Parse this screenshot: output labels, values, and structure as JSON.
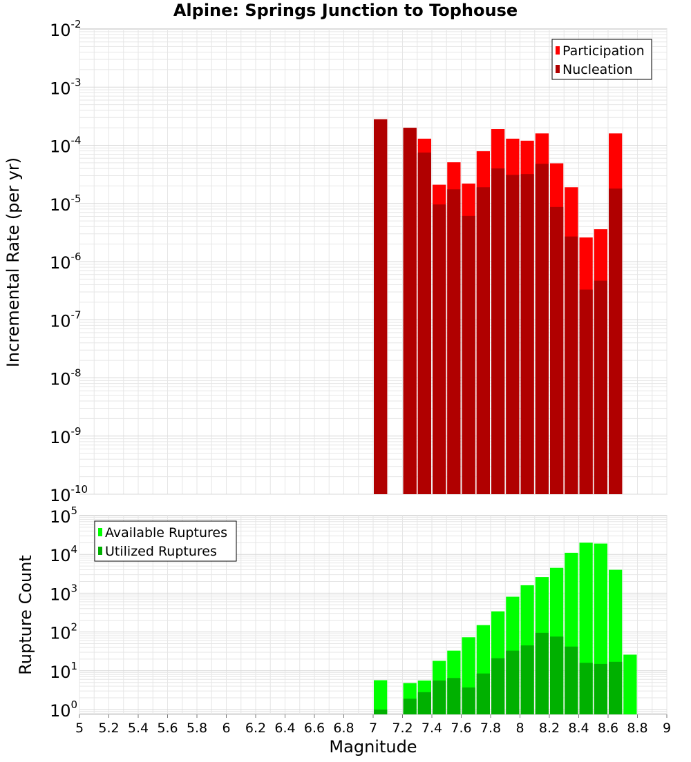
{
  "colors": {
    "participation": "#ff0000",
    "nucleation": "#b00000",
    "available": "#00ff00",
    "utilized": "#00b000",
    "grid": "#e6e6e6",
    "frame": "#bbbbbb"
  },
  "chart_data": [
    {
      "type": "bar",
      "title": "Alpine: Springs Junction to Tophouse",
      "xlabel": "Magnitude",
      "ylabel": "Incremental Rate (per yr)",
      "y_scale": "log",
      "ylim": [
        1e-10,
        0.01
      ],
      "xlim": [
        5,
        9
      ],
      "y_ticks": [
        "10^-10",
        "10^-9",
        "10^-8",
        "10^-7",
        "10^-6",
        "10^-5",
        "10^-4",
        "10^-3",
        "10^-2"
      ],
      "legend": {
        "position": "top-right",
        "entries": [
          "Participation",
          "Nucleation"
        ]
      },
      "grid": true,
      "x": [
        7.05,
        7.25,
        7.35,
        7.45,
        7.55,
        7.65,
        7.75,
        7.85,
        7.95,
        8.05,
        8.15,
        8.25,
        8.35,
        8.45,
        8.55,
        8.65
      ],
      "series": [
        {
          "name": "Participation",
          "values": [
            0.00028,
            0.0002,
            0.00013,
            2.1e-05,
            5.1e-05,
            2.2e-05,
            7.9e-05,
            0.00019,
            0.00013,
            0.00012,
            0.00016,
            4.9e-05,
            1.9e-05,
            2.6e-06,
            3.6e-06,
            0.00016
          ]
        },
        {
          "name": "Nucleation",
          "values": [
            0.00028,
            0.0002,
            7.5e-05,
            9.6e-06,
            1.75e-05,
            6.1e-06,
            1.9e-05,
            4e-05,
            3.1e-05,
            3.2e-05,
            4.8e-05,
            8.7e-06,
            2.7e-06,
            3.3e-07,
            4.7e-07,
            1.8e-05
          ]
        }
      ]
    },
    {
      "type": "bar",
      "xlabel": "Magnitude",
      "ylabel": "Rupture Count",
      "y_scale": "log",
      "ylim": [
        0.75,
        100000
      ],
      "xlim": [
        5,
        9
      ],
      "x_ticks": [
        "5",
        "5.2",
        "5.4",
        "5.6",
        "5.8",
        "6",
        "6.2",
        "6.4",
        "6.6",
        "6.8",
        "7",
        "7.2",
        "7.4",
        "7.6",
        "7.8",
        "8",
        "8.2",
        "8.4",
        "8.6",
        "8.8",
        "9"
      ],
      "y_ticks": [
        "10^0",
        "10^1",
        "10^2",
        "10^3",
        "10^4",
        "10^5"
      ],
      "legend": {
        "position": "top-left",
        "entries": [
          "Available Ruptures",
          "Utilized Ruptures"
        ]
      },
      "grid": true,
      "x": [
        7.05,
        7.25,
        7.35,
        7.45,
        7.55,
        7.65,
        7.75,
        7.85,
        7.95,
        8.05,
        8.15,
        8.25,
        8.35,
        8.45,
        8.55,
        8.65,
        8.75
      ],
      "series": [
        {
          "name": "Available Ruptures",
          "values": [
            5.7,
            4.8,
            5.6,
            18,
            33,
            73,
            150,
            340,
            810,
            1600,
            2600,
            4500,
            11000,
            20000,
            19000,
            4000,
            26
          ]
        },
        {
          "name": "Utilized Ruptures",
          "values": [
            1.0,
            1.9,
            2.8,
            5.6,
            6.5,
            3.7,
            8.5,
            21,
            33,
            45,
            95,
            76,
            42,
            16,
            15,
            17,
            null
          ]
        }
      ]
    }
  ]
}
